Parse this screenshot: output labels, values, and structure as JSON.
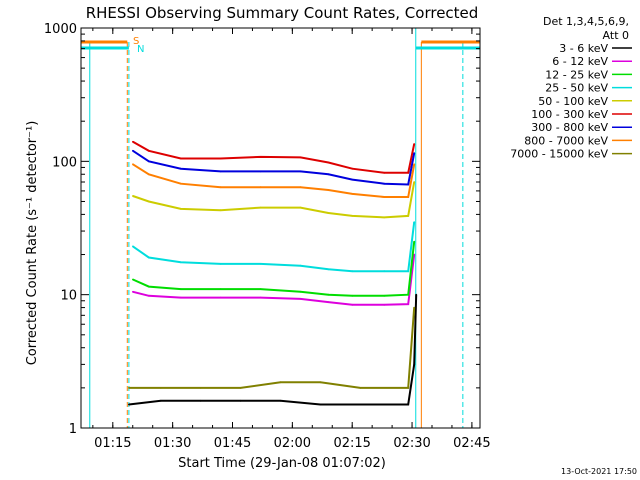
{
  "chart_data": {
    "type": "line",
    "title": "RHESSI Observing Summary Count Rates, Corrected",
    "xlabel": "Start Time (29-Jan-08 01:07:02)",
    "ylabel": "Corrected Count Rate (s⁻¹ detector⁻¹)",
    "yscale": "log",
    "ylim": [
      1,
      1000
    ],
    "xlim_minutes": [
      0,
      100
    ],
    "x_ticks": [
      {
        "label": "01:15",
        "minute": 7.97
      },
      {
        "label": "01:30",
        "minute": 22.97
      },
      {
        "label": "01:45",
        "minute": 37.97
      },
      {
        "label": "02:00",
        "minute": 52.97
      },
      {
        "label": "02:15",
        "minute": 67.97
      },
      {
        "label": "02:30",
        "minute": 82.97
      },
      {
        "label": "02:45",
        "minute": 97.97
      }
    ],
    "y_ticks": [
      {
        "label": "1",
        "value": 1
      },
      {
        "label": "10",
        "value": 10
      },
      {
        "label": "100",
        "value": 100
      },
      {
        "label": "1000",
        "value": 1000
      }
    ],
    "legend_header": [
      "Det 1,3,4,5,6,9,",
      "Att 0"
    ],
    "legend_position": "right",
    "series": [
      {
        "name": "3 - 6 keV",
        "color": "#000000",
        "x": [
          12,
          20,
          30,
          40,
          50,
          60,
          70,
          82,
          83.5,
          84
        ],
        "y": [
          1.5,
          1.6,
          1.6,
          1.6,
          1.6,
          1.5,
          1.5,
          1.5,
          3,
          10
        ]
      },
      {
        "name": "6 - 12 keV",
        "color": "#dd00dd",
        "x": [
          13,
          17,
          25,
          35,
          45,
          55,
          62,
          68,
          76,
          82,
          83.5
        ],
        "y": [
          10.5,
          9.8,
          9.5,
          9.5,
          9.5,
          9.3,
          8.8,
          8.4,
          8.4,
          8.5,
          20
        ]
      },
      {
        "name": "12 - 25 keV",
        "color": "#00dd00",
        "x": [
          13,
          17,
          25,
          35,
          45,
          55,
          62,
          68,
          76,
          82,
          83.5
        ],
        "y": [
          13,
          11.5,
          11.0,
          11.0,
          11.0,
          10.5,
          10.0,
          9.8,
          9.8,
          10.0,
          25
        ]
      },
      {
        "name": "25 - 50 keV",
        "color": "#00dddd",
        "x": [
          13,
          17,
          25,
          35,
          45,
          55,
          62,
          68,
          76,
          82,
          83.5
        ],
        "y": [
          23,
          19,
          17.5,
          17,
          17,
          16.5,
          15.5,
          15,
          15,
          15,
          35
        ]
      },
      {
        "name": "50 - 100 keV",
        "color": "#cccc00",
        "x": [
          13,
          17,
          25,
          35,
          45,
          55,
          62,
          68,
          76,
          82,
          83.5
        ],
        "y": [
          55,
          50,
          44,
          43,
          45,
          45,
          41,
          39,
          38,
          39,
          70
        ]
      },
      {
        "name": "100 - 300 keV",
        "color": "#dd0000",
        "x": [
          13,
          17,
          25,
          35,
          45,
          55,
          62,
          68,
          76,
          82,
          83.5
        ],
        "y": [
          140,
          120,
          105,
          105,
          108,
          107,
          98,
          88,
          82,
          82,
          135
        ]
      },
      {
        "name": "300 - 800 keV",
        "color": "#0000dd",
        "x": [
          13,
          17,
          25,
          35,
          45,
          55,
          62,
          68,
          76,
          82,
          83.5
        ],
        "y": [
          120,
          100,
          88,
          84,
          84,
          84,
          80,
          73,
          68,
          67,
          115
        ]
      },
      {
        "name": "800 - 7000 keV",
        "color": "#ff7f00",
        "x": [
          13,
          17,
          25,
          35,
          45,
          55,
          62,
          68,
          76,
          82,
          83.5
        ],
        "y": [
          95,
          80,
          68,
          64,
          64,
          64,
          61,
          57,
          54,
          54,
          95
        ]
      },
      {
        "name": "7000 - 15000 keV",
        "color": "#808000",
        "x": [
          12,
          20,
          30,
          40,
          50,
          60,
          70,
          82,
          83.5
        ],
        "y": [
          2,
          2,
          2,
          2,
          2.2,
          2.2,
          2,
          2,
          8
        ]
      }
    ],
    "annotations": [
      {
        "text": "S",
        "color": "#ff7f00"
      },
      {
        "text": "N",
        "color": "#00dddd"
      }
    ],
    "footer": "13-Oct-2021 17:50"
  }
}
